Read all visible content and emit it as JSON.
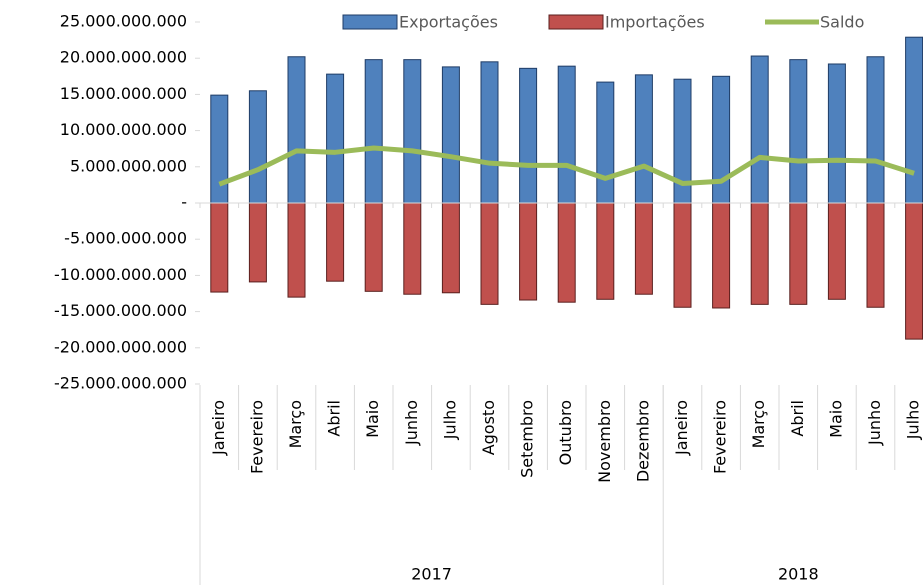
{
  "chart_data": {
    "type": "bar_line",
    "categories": [
      "Janeiro",
      "Fevereiro",
      "Março",
      "Abril",
      "Maio",
      "Junho",
      "Julho",
      "Agosto",
      "Setembro",
      "Outubro",
      "Novembro",
      "Dezembro",
      "Janeiro",
      "Fevereiro",
      "Março",
      "Abril",
      "Maio",
      "Junho",
      "Julho"
    ],
    "groups": [
      {
        "name": "2017",
        "count": 12
      },
      {
        "name": "2018",
        "count": 7
      }
    ],
    "series": [
      {
        "name": "Exportações",
        "type": "bar",
        "color": "#4f81bd",
        "values": [
          14900000000,
          15500000000,
          20200000000,
          17800000000,
          19800000000,
          19800000000,
          18800000000,
          19500000000,
          18600000000,
          18900000000,
          16700000000,
          17700000000,
          17100000000,
          17500000000,
          20300000000,
          19800000000,
          19200000000,
          20200000000,
          22900000000
        ]
      },
      {
        "name": "Importações",
        "type": "bar",
        "color": "#c0504d",
        "values": [
          -12300000000,
          -10900000000,
          -13000000000,
          -10800000000,
          -12200000000,
          -12600000000,
          -12400000000,
          -14000000000,
          -13400000000,
          -13700000000,
          -13300000000,
          -12600000000,
          -14400000000,
          -14500000000,
          -14000000000,
          -14000000000,
          -13300000000,
          -14400000000,
          -18800000000
        ]
      },
      {
        "name": "Saldo",
        "type": "line",
        "color": "#9bbb59",
        "values": [
          2600000000,
          4600000000,
          7200000000,
          7000000000,
          7600000000,
          7200000000,
          6400000000,
          5500000000,
          5200000000,
          5200000000,
          3400000000,
          5100000000,
          2700000000,
          3000000000,
          6300000000,
          5800000000,
          5900000000,
          5800000000,
          4100000000
        ]
      }
    ],
    "ylim": [
      -25000000000,
      25000000000
    ],
    "yticks": [
      {
        "value": 25000000000,
        "label": "25.000.000.000"
      },
      {
        "value": 20000000000,
        "label": "20.000.000.000"
      },
      {
        "value": 15000000000,
        "label": "15.000.000.000"
      },
      {
        "value": 10000000000,
        "label": "10.000.000.000"
      },
      {
        "value": 5000000000,
        "label": "5.000.000.000"
      },
      {
        "value": 0,
        "label": "-"
      },
      {
        "value": -5000000000,
        "label": "-5.000.000.000"
      },
      {
        "value": -10000000000,
        "label": "-10.000.000.000"
      },
      {
        "value": -15000000000,
        "label": "-15.000.000.000"
      },
      {
        "value": -20000000000,
        "label": "-20.000.000.000"
      },
      {
        "value": -25000000000,
        "label": "-25.000.000.000"
      }
    ],
    "grid": false,
    "legend": "top"
  }
}
